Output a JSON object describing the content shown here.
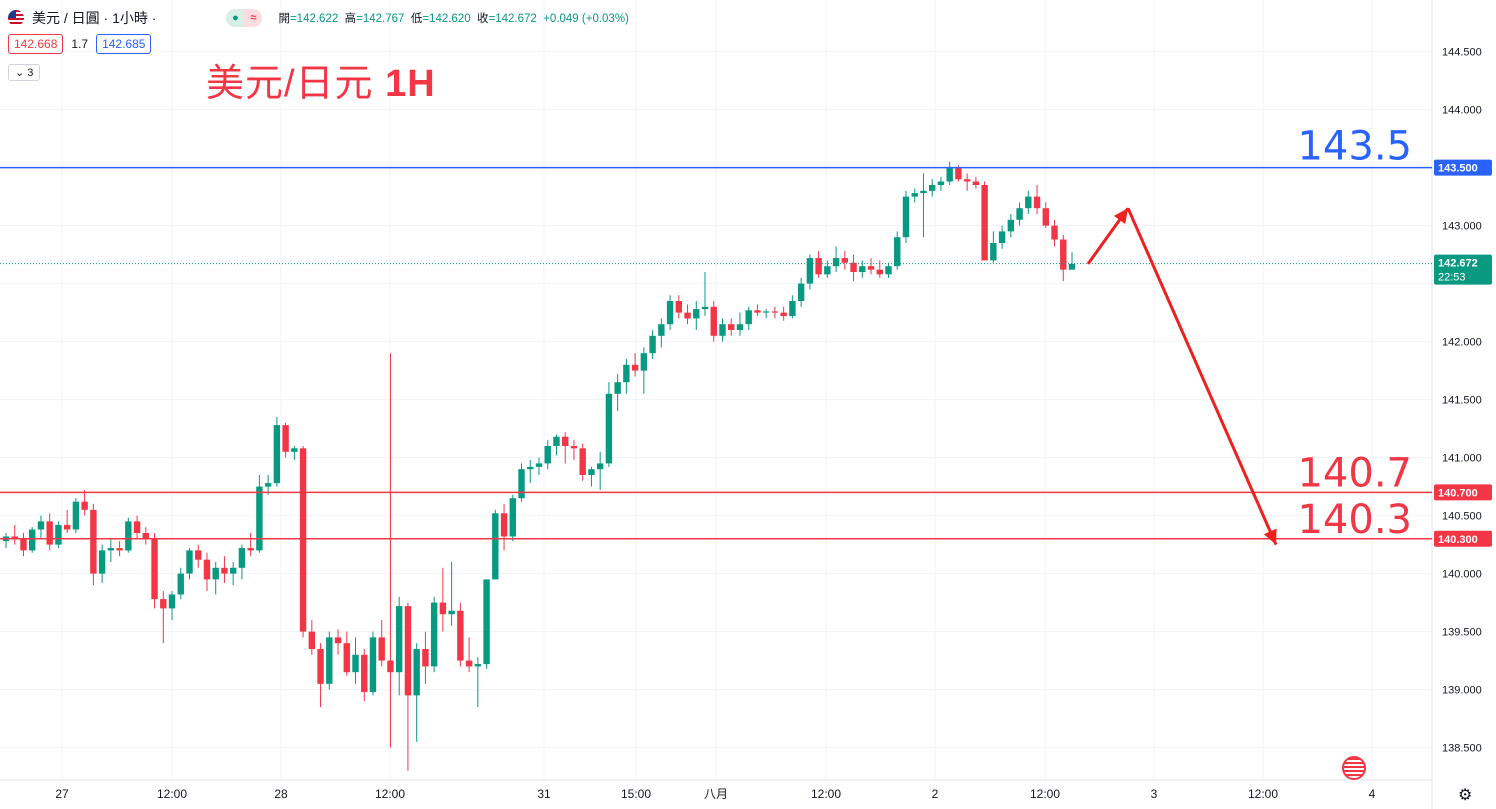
{
  "header": {
    "symbol": "美元 / 日圓 · 1小時 ·",
    "pill_a": "●",
    "pill_b": "≈",
    "ohlc": {
      "open_label": "開",
      "open": "=142.622",
      "high_label": "高",
      "high": "=142.767",
      "low_label": "低",
      "low": "=142.620",
      "close_label": "收",
      "close": "=142.672",
      "change": "+0.049 (+0.03%)"
    },
    "bid": "142.668",
    "spread": "1.7",
    "ask": "142.685",
    "indicators_count": "3"
  },
  "title": {
    "pair": "美元/日元",
    "timeframe": "1H"
  },
  "price_axis": {
    "ticks": [
      "144.500",
      "144.000",
      "143.000",
      "142.000",
      "141.500",
      "141.000",
      "140.500",
      "140.000",
      "139.500",
      "139.000",
      "138.500"
    ],
    "current_price": "142.672",
    "countdown": "22:53",
    "level_labels": [
      "143.500",
      "140.700",
      "140.300"
    ]
  },
  "time_axis": {
    "ticks": [
      "27",
      "12:00",
      "28",
      "12:00",
      "31",
      "15:00",
      "八月",
      "12:00",
      "2",
      "12:00",
      "3",
      "12:00",
      "4"
    ]
  },
  "colors": {
    "up": "#089981",
    "down": "#f23645",
    "resistance": "#2962ff",
    "support": "#f23645"
  },
  "chart_data": {
    "type": "candlestick",
    "title": "美元/日元 1H",
    "ylim": [
      138.25,
      144.75
    ],
    "levels": [
      {
        "value": 143.5,
        "text": "143.5",
        "color": "#2962ff"
      },
      {
        "value": 140.7,
        "text": "140.7",
        "color": "#f23645"
      },
      {
        "value": 140.3,
        "text": "140.3",
        "color": "#f23645"
      }
    ],
    "forecast_path": [
      [
        142.67,
        143.15,
        140.25
      ]
    ],
    "candles": [
      [
        140.28,
        140.35,
        140.22,
        140.32
      ],
      [
        140.32,
        140.42,
        140.25,
        140.3
      ],
      [
        140.3,
        140.35,
        140.15,
        140.2
      ],
      [
        140.2,
        140.4,
        140.18,
        140.38
      ],
      [
        140.38,
        140.5,
        140.3,
        140.45
      ],
      [
        140.45,
        140.52,
        140.2,
        140.25
      ],
      [
        140.25,
        140.45,
        140.22,
        140.42
      ],
      [
        140.42,
        140.55,
        140.35,
        140.38
      ],
      [
        140.38,
        140.65,
        140.35,
        140.62
      ],
      [
        140.62,
        140.72,
        140.5,
        140.55
      ],
      [
        140.55,
        140.6,
        139.9,
        140.0
      ],
      [
        140.0,
        140.25,
        139.92,
        140.2
      ],
      [
        140.2,
        140.3,
        140.1,
        140.22
      ],
      [
        140.22,
        140.28,
        140.15,
        140.2
      ],
      [
        140.2,
        140.48,
        140.18,
        140.45
      ],
      [
        140.45,
        140.5,
        140.3,
        140.35
      ],
      [
        140.35,
        140.4,
        140.25,
        140.3
      ],
      [
        140.3,
        140.35,
        139.7,
        139.78
      ],
      [
        139.78,
        139.85,
        139.4,
        139.7
      ],
      [
        139.7,
        139.85,
        139.6,
        139.82
      ],
      [
        139.82,
        140.05,
        139.78,
        140.0
      ],
      [
        140.0,
        140.22,
        139.95,
        140.2
      ],
      [
        140.2,
        140.25,
        140.05,
        140.12
      ],
      [
        140.12,
        140.18,
        139.85,
        139.95
      ],
      [
        139.95,
        140.1,
        139.82,
        140.05
      ],
      [
        140.05,
        140.15,
        139.92,
        140.0
      ],
      [
        140.0,
        140.1,
        139.9,
        140.05
      ],
      [
        140.05,
        140.25,
        139.95,
        140.22
      ],
      [
        140.22,
        140.35,
        140.15,
        140.2
      ],
      [
        140.2,
        140.85,
        140.18,
        140.75
      ],
      [
        140.75,
        140.85,
        140.68,
        140.78
      ],
      [
        140.78,
        141.35,
        140.75,
        141.28
      ],
      [
        141.28,
        141.3,
        141.0,
        141.05
      ],
      [
        141.05,
        141.1,
        140.98,
        141.08
      ],
      [
        141.08,
        141.1,
        139.45,
        139.5
      ],
      [
        139.5,
        139.6,
        139.3,
        139.35
      ],
      [
        139.35,
        139.4,
        138.85,
        139.05
      ],
      [
        139.05,
        139.5,
        139.0,
        139.45
      ],
      [
        139.45,
        139.52,
        139.3,
        139.4
      ],
      [
        139.4,
        139.5,
        139.12,
        139.15
      ],
      [
        139.15,
        139.45,
        139.05,
        139.3
      ],
      [
        139.3,
        139.35,
        138.9,
        138.98
      ],
      [
        138.98,
        139.5,
        138.95,
        139.45
      ],
      [
        139.45,
        139.6,
        139.2,
        139.25
      ],
      [
        139.25,
        141.9,
        138.5,
        139.15
      ],
      [
        139.15,
        139.8,
        138.95,
        139.72
      ],
      [
        139.72,
        139.75,
        138.3,
        138.95
      ],
      [
        138.95,
        139.4,
        138.55,
        139.35
      ],
      [
        139.35,
        139.5,
        139.05,
        139.2
      ],
      [
        139.2,
        139.8,
        139.15,
        139.75
      ],
      [
        139.75,
        140.05,
        139.5,
        139.65
      ],
      [
        139.65,
        140.1,
        139.55,
        139.68
      ],
      [
        139.68,
        139.75,
        139.2,
        139.25
      ],
      [
        139.25,
        139.45,
        139.15,
        139.2
      ],
      [
        139.2,
        139.28,
        138.85,
        139.22
      ],
      [
        139.22,
        139.95,
        139.18,
        139.95
      ],
      [
        139.95,
        140.55,
        139.95,
        140.52
      ],
      [
        140.52,
        140.6,
        140.2,
        140.32
      ],
      [
        140.32,
        140.68,
        140.28,
        140.65
      ],
      [
        140.65,
        140.95,
        140.62,
        140.9
      ],
      [
        140.9,
        140.98,
        140.78,
        140.92
      ],
      [
        140.92,
        141.0,
        140.85,
        140.95
      ],
      [
        140.95,
        141.15,
        140.9,
        141.1
      ],
      [
        141.1,
        141.2,
        141.02,
        141.18
      ],
      [
        141.18,
        141.22,
        140.95,
        141.1
      ],
      [
        141.1,
        141.15,
        140.98,
        141.08
      ],
      [
        141.08,
        141.12,
        140.8,
        140.85
      ],
      [
        140.85,
        140.92,
        140.75,
        140.9
      ],
      [
        140.9,
        141.05,
        140.72,
        140.95
      ],
      [
        140.95,
        141.65,
        140.92,
        141.55
      ],
      [
        141.55,
        141.72,
        141.4,
        141.65
      ],
      [
        141.65,
        141.85,
        141.55,
        141.8
      ],
      [
        141.8,
        141.9,
        141.7,
        141.75
      ],
      [
        141.75,
        141.95,
        141.55,
        141.9
      ],
      [
        141.9,
        142.1,
        141.85,
        142.05
      ],
      [
        142.05,
        142.2,
        141.95,
        142.15
      ],
      [
        142.15,
        142.4,
        142.1,
        142.35
      ],
      [
        142.35,
        142.4,
        142.2,
        142.25
      ],
      [
        142.25,
        142.32,
        142.15,
        142.2
      ],
      [
        142.2,
        142.35,
        142.1,
        142.28
      ],
      [
        142.28,
        142.6,
        142.22,
        142.3
      ],
      [
        142.3,
        142.35,
        142.0,
        142.05
      ],
      [
        142.05,
        142.2,
        142.0,
        142.15
      ],
      [
        142.15,
        142.2,
        142.05,
        142.1
      ],
      [
        142.1,
        142.25,
        142.05,
        142.15
      ],
      [
        142.15,
        142.3,
        142.1,
        142.27
      ],
      [
        142.27,
        142.32,
        142.22,
        142.25
      ],
      [
        142.25,
        142.28,
        142.2,
        142.26
      ],
      [
        142.26,
        142.3,
        142.2,
        142.25
      ],
      [
        142.25,
        142.3,
        142.18,
        142.22
      ],
      [
        142.22,
        142.4,
        142.2,
        142.35
      ],
      [
        142.35,
        142.55,
        142.3,
        142.5
      ],
      [
        142.5,
        142.75,
        142.45,
        142.72
      ],
      [
        142.72,
        142.78,
        142.55,
        142.58
      ],
      [
        142.58,
        142.7,
        142.55,
        142.65
      ],
      [
        142.65,
        142.82,
        142.6,
        142.72
      ],
      [
        142.72,
        142.78,
        142.62,
        142.68
      ],
      [
        142.68,
        142.75,
        142.52,
        142.6
      ],
      [
        142.6,
        142.7,
        142.55,
        142.65
      ],
      [
        142.65,
        142.72,
        142.58,
        142.62
      ],
      [
        142.62,
        142.7,
        142.55,
        142.58
      ],
      [
        142.58,
        142.68,
        142.55,
        142.65
      ],
      [
        142.65,
        142.95,
        142.62,
        142.9
      ],
      [
        142.9,
        143.3,
        142.85,
        143.25
      ],
      [
        143.25,
        143.32,
        143.2,
        143.28
      ],
      [
        143.28,
        143.45,
        142.9,
        143.3
      ],
      [
        143.3,
        143.4,
        143.25,
        143.35
      ],
      [
        143.35,
        143.42,
        143.3,
        143.38
      ],
      [
        143.38,
        143.55,
        143.35,
        143.5
      ],
      [
        143.5,
        143.52,
        143.38,
        143.4
      ],
      [
        143.4,
        143.45,
        143.3,
        143.38
      ],
      [
        143.38,
        143.42,
        143.32,
        143.35
      ],
      [
        143.35,
        143.38,
        142.7,
        142.7
      ],
      [
        142.7,
        142.95,
        142.68,
        142.85
      ],
      [
        142.85,
        143.0,
        142.8,
        142.95
      ],
      [
        142.95,
        143.1,
        142.9,
        143.05
      ],
      [
        143.05,
        143.2,
        143.0,
        143.15
      ],
      [
        143.15,
        143.3,
        143.1,
        143.25
      ],
      [
        143.25,
        143.35,
        143.1,
        143.15
      ],
      [
        143.15,
        143.2,
        142.98,
        143.0
      ],
      [
        143.0,
        143.05,
        142.82,
        142.88
      ],
      [
        142.88,
        142.92,
        142.52,
        142.62
      ],
      [
        142.62,
        142.77,
        142.62,
        142.67
      ]
    ]
  }
}
